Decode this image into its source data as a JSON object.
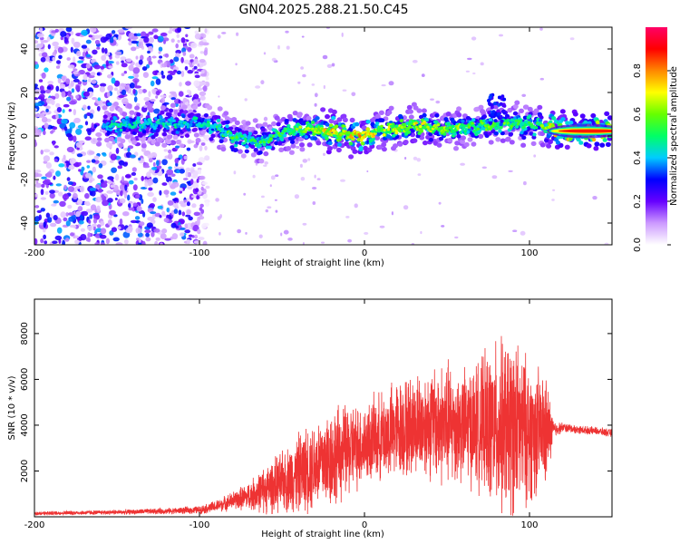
{
  "figure_title": "GN04.2025.288.21.50.C45",
  "chart_data": [
    {
      "type": "heatmap",
      "title": "GN04.2025.288.21.50.C45",
      "xlabel": "Height of straight line (km)",
      "ylabel": "Frequency (Hz)",
      "xlim": [
        -200,
        150
      ],
      "ylim": [
        -50,
        50
      ],
      "x_ticks": [
        -200,
        -100,
        0,
        100
      ],
      "x_tick_labels": [
        "-200",
        "-100",
        "0",
        "100"
      ],
      "y_ticks": [
        -40,
        -20,
        0,
        20,
        40
      ],
      "y_tick_labels": [
        "-40",
        "-20",
        "0",
        "20",
        "40"
      ],
      "colorbar": {
        "label": "Normalized spectral amplitude",
        "range": [
          0,
          1
        ],
        "ticks": [
          0.0,
          0.2,
          0.4,
          0.6,
          0.8
        ],
        "tick_labels": [
          "0.0",
          "0.2",
          "0.4",
          "0.6",
          "0.8"
        ],
        "colors": [
          "#ffffff",
          "#cc99ff",
          "#6600ff",
          "#0000ff",
          "#00ccff",
          "#00ff66",
          "#66ff00",
          "#ffff00",
          "#ff8800",
          "#ff0000",
          "#ff0066"
        ]
      },
      "ridge": {
        "x": [
          -155,
          -140,
          -120,
          -100,
          -90,
          -80,
          -70,
          -60,
          -50,
          -40,
          -30,
          -20,
          -10,
          0,
          10,
          20,
          30,
          40,
          50,
          60,
          70,
          80,
          90,
          100,
          110,
          115,
          125,
          135,
          150
        ],
        "y": [
          5,
          5,
          6,
          6,
          4,
          0,
          -2,
          -3,
          2,
          3,
          3,
          2,
          1,
          0,
          3,
          3,
          5,
          4,
          3,
          4,
          5,
          5,
          6,
          5,
          4,
          3,
          2,
          2,
          2
        ],
        "peak_amplitude": [
          0.45,
          0.5,
          0.45,
          0.45,
          0.5,
          0.55,
          0.5,
          0.55,
          0.55,
          0.6,
          0.65,
          0.75,
          0.7,
          0.8,
          0.65,
          0.65,
          0.7,
          0.65,
          0.65,
          0.6,
          0.55,
          0.6,
          0.55,
          0.55,
          0.6,
          0.9,
          0.95,
          1.0,
          1.0
        ]
      },
      "noise_region": {
        "x_range": [
          -200,
          -95
        ],
        "y_range": [
          -50,
          50
        ],
        "amplitude": [
          0.05,
          0.4
        ]
      }
    },
    {
      "type": "line",
      "xlabel": "Height of straight line (km)",
      "ylabel": "SNR (10 * v/v)",
      "xlim": [
        -200,
        150
      ],
      "ylim": [
        0,
        9500
      ],
      "x_ticks": [
        -200,
        -100,
        0,
        100
      ],
      "x_tick_labels": [
        "-200",
        "-100",
        "0",
        "100"
      ],
      "y_ticks": [
        2000,
        4000,
        6000,
        8000
      ],
      "y_tick_labels": [
        "2000",
        "4000",
        "6000",
        "8000"
      ],
      "series": [
        {
          "name": "SNR",
          "color": "#ee3333",
          "envelope_x": [
            -200,
            -150,
            -120,
            -100,
            -90,
            -80,
            -70,
            -60,
            -50,
            -40,
            -30,
            -20,
            -10,
            0,
            10,
            20,
            30,
            40,
            50,
            60,
            70,
            80,
            90,
            100,
            110,
            115,
            120,
            130,
            140,
            150
          ],
          "envelope_mean": [
            150,
            200,
            250,
            300,
            450,
            700,
            900,
            1200,
            1500,
            1900,
            2300,
            2600,
            2900,
            3200,
            3500,
            3800,
            4000,
            4100,
            4000,
            4000,
            4000,
            3900,
            3900,
            3700,
            3700,
            3800,
            3900,
            3800,
            3750,
            3650
          ],
          "envelope_amp": [
            100,
            120,
            150,
            200,
            300,
            450,
            700,
            1200,
            1500,
            2000,
            2300,
            2500,
            2300,
            2000,
            2200,
            2500,
            2500,
            2800,
            3200,
            2800,
            3200,
            4200,
            4500,
            3500,
            2800,
            400,
            250,
            200,
            200,
            200
          ]
        }
      ]
    }
  ]
}
